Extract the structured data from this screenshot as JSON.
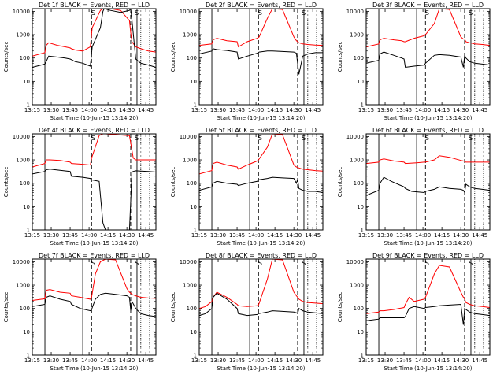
{
  "chart_data": {
    "type": "line",
    "figure": "RHESSI detector count rates, 9 panels (3x3)",
    "colors": {
      "events": "#000000",
      "lld": "#ff0000",
      "axes": "#000000",
      "background": "#ffffff"
    },
    "shared": {
      "ylabel": "Counts/sec",
      "xlabel": "Start Time (10-Jun-15 13:14:20)",
      "x_ticks": [
        "13:15",
        "13:30",
        "13:45",
        "14:00",
        "14:15",
        "14:30",
        "14:45"
      ],
      "x_tick_values_min": [
        0,
        15,
        30,
        45,
        60,
        75,
        90
      ],
      "xlim_min": [
        0,
        98
      ],
      "y_scale": "log",
      "ylim": [
        1,
        13000
      ],
      "y_ticks": [
        "1",
        "10",
        "100",
        "1000",
        "10000"
      ],
      "y_tick_values": [
        1,
        10,
        100,
        1000,
        10000
      ],
      "legend": "BLACK = Events, RED = LLD",
      "saa_markers": [
        {
          "label": "S",
          "at_min": 45.5
        },
        {
          "label": "S",
          "at_min": 80
        }
      ]
    },
    "panels": [
      {
        "title": "Det 1f BLACK = Events, RED = LLD",
        "events": {
          "x": [
            0,
            10,
            11,
            13,
            20,
            26,
            30,
            31,
            34,
            40,
            46,
            47.5,
            54,
            56,
            57,
            62,
            70,
            77,
            78,
            79,
            82,
            86,
            92,
            98
          ],
          "y": [
            40,
            55,
            70,
            120,
            110,
            100,
            90,
            85,
            70,
            60,
            45,
            300,
            2000,
            10000,
            13000,
            11000,
            9000,
            11000,
            13000,
            4000,
            90,
            60,
            50,
            40
          ]
        },
        "lld": {
          "x": [
            0,
            10,
            11,
            13,
            20,
            26,
            30,
            31,
            34,
            40,
            46,
            47.5,
            54,
            56,
            57,
            62,
            70,
            77,
            78,
            79,
            82,
            86,
            92,
            98
          ],
          "y": [
            120,
            170,
            350,
            450,
            350,
            300,
            270,
            250,
            220,
            200,
            300,
            2000,
            11000,
            13000,
            13000,
            13000,
            11000,
            4000,
            1200,
            500,
            300,
            250,
            200,
            180
          ]
        }
      },
      {
        "title": "Det 2f BLACK = Events, RED = LLD",
        "events": {
          "x": [
            0,
            10,
            11,
            14,
            22,
            30,
            31,
            38,
            46,
            47.5,
            54,
            58,
            66,
            75,
            77,
            79,
            82,
            86,
            92,
            98
          ],
          "y": [
            150,
            200,
            250,
            230,
            210,
            180,
            90,
            120,
            160,
            180,
            200,
            200,
            190,
            180,
            160,
            20,
            120,
            150,
            170,
            170
          ]
        },
        "lld": {
          "x": [
            0,
            10,
            11,
            14,
            22,
            30,
            31,
            38,
            46,
            47.5,
            54,
            58,
            66,
            75,
            77,
            79,
            82,
            86,
            92,
            98
          ],
          "y": [
            350,
            400,
            600,
            700,
            550,
            500,
            300,
            500,
            700,
            800,
            5000,
            13000,
            12000,
            800,
            550,
            450,
            400,
            380,
            360,
            350
          ]
        }
      },
      {
        "title": "Det 3f BLACK = Events, RED = LLD",
        "events": {
          "x": [
            0,
            10,
            11,
            14,
            22,
            28,
            30,
            31,
            38,
            46,
            47,
            54,
            58,
            66,
            75,
            77,
            78,
            79,
            82,
            86,
            92,
            98
          ],
          "y": [
            60,
            80,
            150,
            180,
            130,
            100,
            90,
            40,
            45,
            50,
            60,
            130,
            140,
            130,
            110,
            40,
            130,
            100,
            70,
            60,
            55,
            50
          ]
        },
        "lld": {
          "x": [
            0,
            10,
            11,
            14,
            22,
            28,
            30,
            31,
            38,
            46,
            47,
            54,
            58,
            66,
            75,
            77,
            78,
            79,
            82,
            86,
            92,
            98
          ],
          "y": [
            300,
            400,
            600,
            700,
            600,
            550,
            500,
            500,
            700,
            900,
            1000,
            3000,
            13000,
            12000,
            800,
            650,
            650,
            500,
            450,
            400,
            380,
            350
          ]
        }
      },
      {
        "title": "Det 4f BLACK = Events, RED = LLD",
        "events": {
          "x": [
            0,
            10,
            11,
            14,
            22,
            30,
            31,
            40,
            46,
            47,
            53,
            56,
            58,
            66,
            77,
            79,
            80,
            82,
            86,
            92,
            98
          ],
          "y": [
            250,
            320,
            380,
            400,
            360,
            320,
            200,
            180,
            160,
            140,
            120,
            2,
            1,
            1,
            1,
            300,
            320,
            340,
            330,
            320,
            300
          ]
        },
        "lld": {
          "x": [
            0,
            10,
            11,
            14,
            22,
            30,
            31,
            40,
            46,
            47,
            53,
            56,
            58,
            66,
            77,
            79,
            80,
            82,
            86,
            92,
            98
          ],
          "y": [
            500,
            700,
            1000,
            1000,
            950,
            800,
            700,
            650,
            600,
            1200,
            11000,
            13000,
            13000,
            12000,
            11000,
            2500,
            1200,
            1000,
            1000,
            1000,
            1000
          ]
        }
      },
      {
        "title": "Det 5f BLACK = Events, RED = LLD",
        "events": {
          "x": [
            0,
            10,
            11,
            14,
            22,
            30,
            31,
            38,
            46,
            47,
            54,
            58,
            66,
            75,
            77,
            78,
            79,
            82,
            86,
            92,
            98
          ],
          "y": [
            50,
            70,
            100,
            120,
            100,
            90,
            80,
            100,
            120,
            140,
            160,
            180,
            170,
            160,
            100,
            150,
            60,
            50,
            45,
            45,
            40
          ]
        },
        "lld": {
          "x": [
            0,
            10,
            11,
            14,
            22,
            30,
            31,
            38,
            46,
            47,
            54,
            58,
            66,
            75,
            77,
            78,
            79,
            82,
            86,
            92,
            98
          ],
          "y": [
            250,
            350,
            700,
            800,
            600,
            500,
            400,
            600,
            900,
            1000,
            3500,
            13000,
            12000,
            600,
            500,
            480,
            450,
            400,
            380,
            350,
            330
          ]
        }
      },
      {
        "title": "Det 6f BLACK = Events, RED = LLD",
        "events": {
          "x": [
            0,
            10,
            11,
            14,
            20,
            30,
            31,
            36,
            46,
            47,
            54,
            58,
            66,
            75,
            77,
            78,
            79,
            82,
            86,
            92,
            98
          ],
          "y": [
            30,
            50,
            100,
            180,
            120,
            70,
            60,
            45,
            40,
            45,
            55,
            70,
            60,
            55,
            50,
            40,
            90,
            70,
            60,
            55,
            50
          ]
        },
        "lld": {
          "x": [
            0,
            10,
            11,
            14,
            22,
            30,
            31,
            40,
            46,
            47,
            54,
            58,
            66,
            75,
            77,
            79,
            82,
            86,
            92,
            98
          ],
          "y": [
            700,
            800,
            1000,
            1100,
            900,
            800,
            700,
            750,
            800,
            800,
            1000,
            1500,
            1300,
            950,
            900,
            800,
            800,
            800,
            800,
            800
          ]
        }
      },
      {
        "title": "Det 7f BLACK = Events, RED = LLD",
        "events": {
          "x": [
            0,
            10,
            11,
            14,
            22,
            30,
            31,
            38,
            46,
            47,
            50,
            54,
            58,
            66,
            75,
            77,
            78,
            79,
            82,
            86,
            92,
            98
          ],
          "y": [
            120,
            150,
            300,
            350,
            250,
            200,
            150,
            100,
            80,
            90,
            250,
            400,
            450,
            400,
            350,
            300,
            80,
            200,
            100,
            60,
            50,
            45
          ]
        },
        "lld": {
          "x": [
            0,
            10,
            11,
            14,
            22,
            30,
            31,
            38,
            46,
            47,
            50,
            54,
            58,
            66,
            75,
            77,
            78,
            79,
            82,
            86,
            92,
            98
          ],
          "y": [
            220,
            260,
            600,
            650,
            500,
            450,
            350,
            300,
            250,
            300,
            3000,
            10000,
            13000,
            12000,
            700,
            500,
            450,
            400,
            350,
            300,
            280,
            270
          ]
        }
      },
      {
        "title": "Det 8f BLACK = Events, RED = LLD",
        "events": {
          "x": [
            0,
            5,
            10,
            11,
            14,
            22,
            30,
            31,
            38,
            46,
            47,
            54,
            58,
            66,
            75,
            77,
            78,
            79,
            82,
            86,
            92,
            98
          ],
          "y": [
            50,
            60,
            100,
            300,
            450,
            250,
            100,
            60,
            50,
            55,
            60,
            70,
            80,
            75,
            70,
            65,
            60,
            100,
            80,
            70,
            65,
            60
          ]
        },
        "lld": {
          "x": [
            0,
            5,
            10,
            11,
            14,
            22,
            30,
            31,
            38,
            46,
            47,
            54,
            58,
            66,
            75,
            77,
            78,
            79,
            82,
            86,
            92,
            98
          ],
          "y": [
            100,
            120,
            200,
            300,
            500,
            300,
            150,
            130,
            120,
            130,
            140,
            1800,
            13000,
            12000,
            500,
            350,
            300,
            250,
            200,
            180,
            170,
            160
          ]
        }
      },
      {
        "title": "Det 9f BLACK = Events, RED = LLD",
        "events": {
          "x": [
            0,
            10,
            11,
            14,
            22,
            30,
            31,
            34,
            38,
            46,
            47,
            54,
            58,
            66,
            75,
            77,
            78,
            79,
            82,
            86,
            92,
            98
          ],
          "y": [
            30,
            35,
            40,
            40,
            40,
            40,
            45,
            100,
            120,
            100,
            110,
            120,
            130,
            140,
            150,
            20,
            100,
            90,
            70,
            60,
            55,
            50
          ]
        },
        "lld": {
          "x": [
            0,
            10,
            11,
            14,
            22,
            30,
            31,
            34,
            38,
            46,
            47,
            54,
            58,
            66,
            75,
            77,
            78,
            79,
            82,
            86,
            92,
            98
          ],
          "y": [
            60,
            70,
            80,
            80,
            90,
            110,
            150,
            300,
            200,
            250,
            300,
            3000,
            7000,
            6000,
            500,
            300,
            250,
            180,
            150,
            130,
            120,
            110
          ]
        }
      }
    ]
  }
}
